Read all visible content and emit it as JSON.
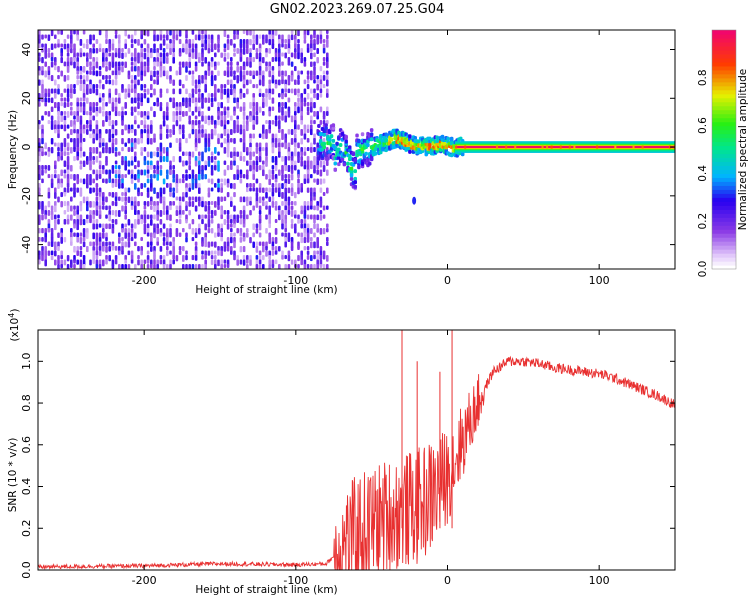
{
  "title": "GN02.2023.269.07.25.G04",
  "chart_data": [
    {
      "type": "heatmap",
      "xlabel": "Height of straight line (km)",
      "ylabel": "Frequency (Hz)",
      "xlim": [
        -270,
        150
      ],
      "ylim": [
        -50,
        48
      ],
      "xticks": [
        -200,
        -100,
        0,
        100
      ],
      "yticks": [
        -40,
        -20,
        0,
        20,
        40
      ],
      "colorbar": {
        "label": "Normalized spectral amplitude",
        "range": [
          0.0,
          1.0
        ],
        "ticks": [
          "0.0",
          "0.2",
          "0.4",
          "0.6",
          "0.8"
        ]
      },
      "regions": [
        {
          "x_from": -270,
          "x_to": -80,
          "description_level": 0.15
        },
        {
          "x_from": -80,
          "x_to": 10,
          "description_level": 0.5
        },
        {
          "x_from": 10,
          "x_to": 150,
          "description_level": 1.0
        }
      ],
      "carrier_frequency_hz": 0
    },
    {
      "type": "line",
      "xlabel": "Height of straight line (km)",
      "ylabel": "SNR (10 * v/v)",
      "yscale_label": "(x10",
      "yscale_exp": "4",
      "yscale_close": ")",
      "xlim": [
        -270,
        150
      ],
      "ylim": [
        0,
        1.15
      ],
      "xticks": [
        -200,
        -100,
        0,
        100
      ],
      "yticks": [
        "0.0",
        "0.2",
        "0.4",
        "0.6",
        "0.8",
        "1.0"
      ],
      "series": [
        {
          "color": "#e83030",
          "x": [
            -270,
            -200,
            -150,
            -100,
            -80,
            -70,
            -60,
            -50,
            -40,
            -30,
            -20,
            -10,
            0,
            10,
            20,
            30,
            40,
            50,
            60,
            70,
            80,
            90,
            100,
            110,
            120,
            130,
            140,
            150
          ],
          "y": [
            0.015,
            0.02,
            0.03,
            0.025,
            0.03,
            0.1,
            0.18,
            0.22,
            0.26,
            0.28,
            0.3,
            0.36,
            0.45,
            0.62,
            0.8,
            0.95,
            1.0,
            1.0,
            0.99,
            0.97,
            0.96,
            0.95,
            0.94,
            0.92,
            0.89,
            0.86,
            0.83,
            0.79
          ]
        }
      ]
    }
  ]
}
